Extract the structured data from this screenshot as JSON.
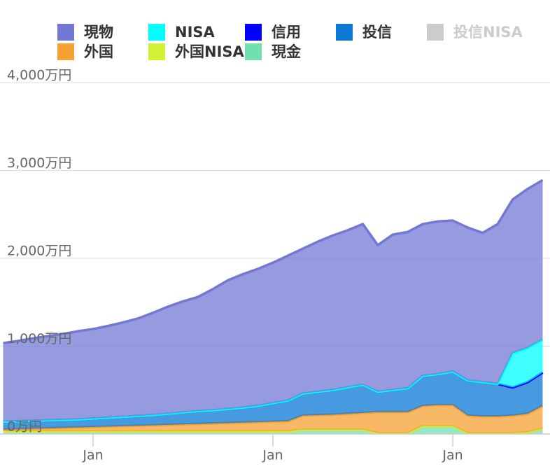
{
  "chart_data": {
    "type": "stacked_area",
    "categories": [
      null,
      null,
      null,
      null,
      null,
      null,
      "Jan",
      null,
      null,
      null,
      null,
      null,
      null,
      null,
      null,
      null,
      null,
      null,
      "Jan",
      null,
      null,
      null,
      null,
      null,
      null,
      null,
      null,
      null,
      null,
      null,
      "Jan",
      null,
      null,
      null,
      null,
      null,
      null
    ],
    "series": [
      {
        "name": "現物",
        "color": "#7378d4",
        "values": [
          895,
          915,
          940,
          960,
          980,
          1005,
          1020,
          1045,
          1075,
          1110,
          1165,
          1220,
          1265,
          1300,
          1380,
          1465,
          1520,
          1560,
          1600,
          1650,
          1650,
          1710,
          1760,
          1790,
          1830,
          1670,
          1770,
          1780,
          1730,
          1740,
          1720,
          1740,
          1700,
          1820,
          1750,
          1810,
          1815
        ]
      },
      {
        "name": "NISA",
        "color": "#00ffff",
        "values": [
          0,
          0,
          0,
          0,
          0,
          0,
          0,
          0,
          0,
          0,
          0,
          0,
          0,
          0,
          0,
          0,
          0,
          0,
          0,
          0,
          0,
          0,
          0,
          0,
          0,
          0,
          0,
          0,
          0,
          0,
          0,
          0,
          0,
          0,
          390,
          390,
          375
        ]
      },
      {
        "name": "信用",
        "color": "#0000ff",
        "values": [
          0,
          0,
          0,
          0,
          0,
          0,
          0,
          0,
          0,
          0,
          0,
          0,
          0,
          0,
          0,
          0,
          0,
          0,
          0,
          0,
          0,
          0,
          0,
          0,
          0,
          0,
          0,
          0,
          0,
          0,
          0,
          0,
          0,
          0,
          0,
          0,
          0
        ]
      },
      {
        "name": "投信",
        "color": "#0a78d4",
        "values": [
          90,
          90,
          90,
          90,
          90,
          90,
          95,
          100,
          105,
          110,
          115,
          125,
          135,
          145,
          150,
          160,
          170,
          185,
          210,
          235,
          250,
          265,
          280,
          300,
          320,
          230,
          250,
          270,
          340,
          350,
          380,
          400,
          390,
          370,
          320,
          360,
          380
        ]
      },
      {
        "name": "投信NISA",
        "color": "#cccccc",
        "hidden": true
      },
      {
        "name": "外国",
        "color": "#f5a033",
        "values": [
          20,
          25,
          30,
          35,
          40,
          45,
          50,
          55,
          60,
          65,
          70,
          75,
          80,
          85,
          90,
          95,
          100,
          105,
          110,
          115,
          160,
          165,
          170,
          180,
          190,
          240,
          240,
          240,
          230,
          240,
          240,
          200,
          190,
          190,
          200,
          210,
          260
        ]
      },
      {
        "name": "外国NISA",
        "color": "#d4f035",
        "values": [
          0,
          0,
          0,
          0,
          0,
          0,
          0,
          0,
          0,
          0,
          0,
          0,
          0,
          0,
          0,
          0,
          0,
          0,
          0,
          0,
          0,
          0,
          0,
          0,
          0,
          0,
          0,
          0,
          0,
          0,
          0,
          0,
          0,
          0,
          0,
          0,
          0
        ]
      },
      {
        "name": "現金",
        "color": "#70e0b0",
        "values": [
          30,
          30,
          30,
          30,
          30,
          30,
          30,
          30,
          30,
          30,
          30,
          30,
          30,
          30,
          30,
          30,
          30,
          30,
          30,
          30,
          50,
          50,
          50,
          50,
          50,
          10,
          10,
          10,
          90,
          90,
          90,
          10,
          10,
          10,
          10,
          20,
          60
        ]
      }
    ],
    "ylim": [
      0,
      4000
    ],
    "yticks": [
      {
        "value": 0,
        "label": "0万円"
      },
      {
        "value": 1000,
        "label": "1,000万円"
      },
      {
        "value": 2000,
        "label": "2,000万円"
      },
      {
        "value": 3000,
        "label": "3,000万円"
      },
      {
        "value": 4000,
        "label": "4,000万円"
      }
    ],
    "grid": true
  }
}
